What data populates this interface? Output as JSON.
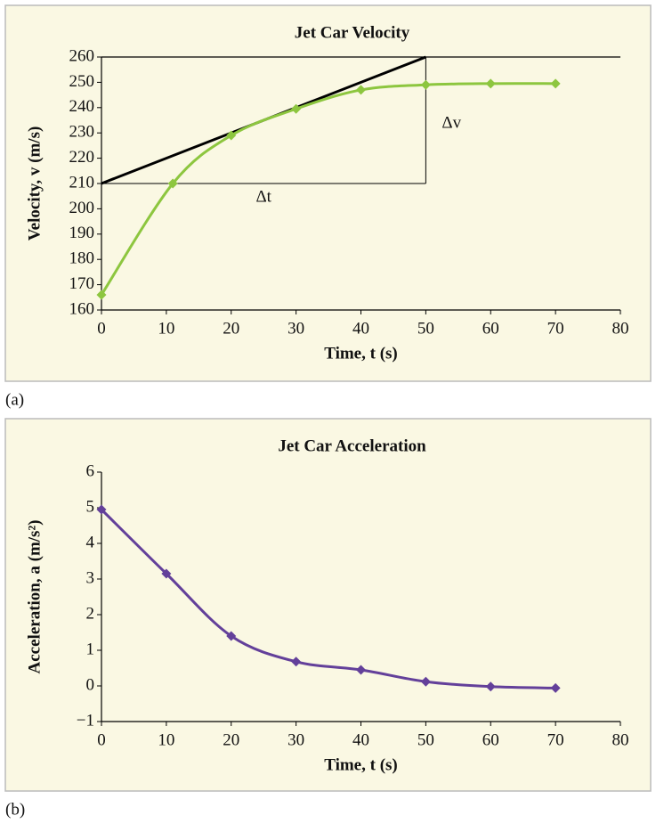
{
  "chart_data": [
    {
      "type": "line",
      "panel_label": "(a)",
      "title": "Jet Car Velocity",
      "xlabel": "Time, t (s)",
      "ylabel": "Velocity, v (m/s)",
      "x": [
        0,
        11,
        20,
        30,
        40,
        50,
        60,
        70
      ],
      "series": [
        {
          "color": "#8dc63f",
          "values": [
            166,
            210,
            229,
            239.5,
            247,
            249,
            249.5,
            249.5
          ]
        }
      ],
      "xlim": [
        0,
        80
      ],
      "xticks": [
        0,
        10,
        20,
        30,
        40,
        50,
        60,
        70,
        80
      ],
      "ylim": [
        160,
        260
      ],
      "yticks": [
        160,
        170,
        180,
        190,
        200,
        210,
        220,
        230,
        240,
        250,
        260
      ],
      "tangent": {
        "color": "#000000",
        "x": [
          0,
          50
        ],
        "y": [
          210,
          260
        ]
      },
      "annotations": [
        "Δt",
        "Δv"
      ]
    },
    {
      "type": "line",
      "panel_label": "(b)",
      "title": "Jet Car Acceleration",
      "xlabel": "Time, t (s)",
      "ylabel": "Acceleration, a (m/s²)",
      "x": [
        0,
        10,
        20,
        30,
        40,
        50,
        60,
        70
      ],
      "series": [
        {
          "color": "#63409a",
          "values": [
            4.95,
            3.15,
            1.4,
            0.68,
            0.45,
            0.12,
            -0.02,
            -0.06
          ]
        }
      ],
      "xlim": [
        0,
        80
      ],
      "xticks": [
        0,
        10,
        20,
        30,
        40,
        50,
        60,
        70,
        80
      ],
      "ylim": [
        -1,
        6
      ],
      "yticks": [
        {
          "value": -1,
          "label": "−1"
        },
        0,
        1,
        2,
        3,
        4,
        5,
        6
      ]
    }
  ]
}
